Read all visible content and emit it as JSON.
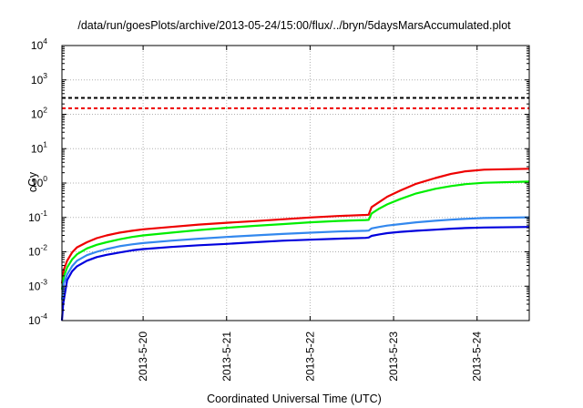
{
  "chart_data": {
    "type": "line",
    "title": "/data/run/goesPlots/archive/2013-05-24/15:00/flux/../bryn/5daysMarsAccumulated.plot",
    "xlabel": "Coordinated Universal Time (UTC)",
    "ylabel": "cGy",
    "yscale": "log",
    "ylim": [
      0.0001,
      10000
    ],
    "xlim": [
      "2013-05-19T00:40",
      "2013-05-24T15:00"
    ],
    "grid": true,
    "yticks": [
      {
        "base": "10",
        "exp": "-4",
        "value": 0.0001
      },
      {
        "base": "10",
        "exp": "-3",
        "value": 0.001
      },
      {
        "base": "10",
        "exp": "-2",
        "value": 0.01
      },
      {
        "base": "10",
        "exp": "-1",
        "value": 0.1
      },
      {
        "base": "10",
        "exp": "0",
        "value": 1
      },
      {
        "base": "10",
        "exp": "1",
        "value": 10
      },
      {
        "base": "10",
        "exp": "2",
        "value": 100
      },
      {
        "base": "10",
        "exp": "3",
        "value": 1000
      },
      {
        "base": "10",
        "exp": "4",
        "value": 10000
      }
    ],
    "xticks": [
      {
        "label": "2013-5-20",
        "value": "2013-05-20T00:00"
      },
      {
        "label": "2013-5-21",
        "value": "2013-05-21T00:00"
      },
      {
        "label": "2013-5-22",
        "value": "2013-05-22T00:00"
      },
      {
        "label": "2013-5-23",
        "value": "2013-05-23T00:00"
      },
      {
        "label": "2013-5-24",
        "value": "2013-05-24T00:00"
      }
    ],
    "reference_lines": [
      {
        "value": 300,
        "color": "#000000",
        "style": "dashed"
      },
      {
        "value": 150,
        "color": "#ee0000",
        "style": "dashed"
      }
    ],
    "series": [
      {
        "color": "#ee0000",
        "points": [
          [
            "2013-05-19T00:40",
            0.0012
          ],
          [
            "2013-05-19T01:12",
            0.003
          ],
          [
            "2013-05-19T02:10",
            0.0055
          ],
          [
            "2013-05-19T03:35",
            0.0095
          ],
          [
            "2013-05-19T05:00",
            0.0135
          ],
          [
            "2013-05-19T07:50",
            0.019
          ],
          [
            "2013-05-19T10:40",
            0.025
          ],
          [
            "2013-05-19T13:30",
            0.03
          ],
          [
            "2013-05-19T17:10",
            0.036
          ],
          [
            "2013-05-19T20:50",
            0.041
          ],
          [
            "2013-05-20T00:00",
            0.045
          ],
          [
            "2013-05-20T08:00",
            0.053
          ],
          [
            "2013-05-20T16:00",
            0.062
          ],
          [
            "2013-05-21T00:00",
            0.07
          ],
          [
            "2013-05-21T08:00",
            0.078
          ],
          [
            "2013-05-21T16:00",
            0.088
          ],
          [
            "2013-05-22T00:00",
            0.1
          ],
          [
            "2013-05-22T08:00",
            0.11
          ],
          [
            "2013-05-22T16:00",
            0.118
          ],
          [
            "2013-05-22T16:50",
            0.12
          ],
          [
            "2013-05-22T17:40",
            0.2
          ],
          [
            "2013-05-22T19:50",
            0.28
          ],
          [
            "2013-05-22T22:10",
            0.4
          ],
          [
            "2013-05-23T01:50",
            0.6
          ],
          [
            "2013-05-23T06:30",
            0.95
          ],
          [
            "2013-05-23T12:00",
            1.4
          ],
          [
            "2013-05-23T16:30",
            1.85
          ],
          [
            "2013-05-23T20:40",
            2.2
          ],
          [
            "2013-05-24T02:00",
            2.45
          ],
          [
            "2013-05-24T15:00",
            2.6
          ]
        ]
      },
      {
        "color": "#00ee00",
        "points": [
          [
            "2013-05-19T00:40",
            0.0008
          ],
          [
            "2013-05-19T01:12",
            0.0019
          ],
          [
            "2013-05-19T02:10",
            0.0035
          ],
          [
            "2013-05-19T03:35",
            0.006
          ],
          [
            "2013-05-19T05:00",
            0.0085
          ],
          [
            "2013-05-19T07:50",
            0.0125
          ],
          [
            "2013-05-19T10:40",
            0.016
          ],
          [
            "2013-05-19T13:30",
            0.019
          ],
          [
            "2013-05-19T17:10",
            0.023
          ],
          [
            "2013-05-19T20:50",
            0.027
          ],
          [
            "2013-05-20T00:00",
            0.03
          ],
          [
            "2013-05-20T08:00",
            0.036
          ],
          [
            "2013-05-20T16:00",
            0.043
          ],
          [
            "2013-05-21T00:00",
            0.05
          ],
          [
            "2013-05-21T08:00",
            0.057
          ],
          [
            "2013-05-21T16:00",
            0.064
          ],
          [
            "2013-05-22T00:00",
            0.072
          ],
          [
            "2013-05-22T08:00",
            0.079
          ],
          [
            "2013-05-22T16:00",
            0.084
          ],
          [
            "2013-05-22T16:50",
            0.085
          ],
          [
            "2013-05-22T17:40",
            0.13
          ],
          [
            "2013-05-22T19:50",
            0.18
          ],
          [
            "2013-05-22T22:10",
            0.24
          ],
          [
            "2013-05-23T01:50",
            0.34
          ],
          [
            "2013-05-23T06:30",
            0.5
          ],
          [
            "2013-05-23T12:00",
            0.68
          ],
          [
            "2013-05-23T16:30",
            0.82
          ],
          [
            "2013-05-23T20:40",
            0.93
          ],
          [
            "2013-05-24T02:00",
            1.02
          ],
          [
            "2013-05-24T15:00",
            1.1
          ]
        ]
      },
      {
        "color": "#3388ee",
        "points": [
          [
            "2013-05-19T00:40",
            0.0004
          ],
          [
            "2013-05-19T01:12",
            0.0012
          ],
          [
            "2013-05-19T02:10",
            0.0022
          ],
          [
            "2013-05-19T03:35",
            0.0038
          ],
          [
            "2013-05-19T05:00",
            0.0055
          ],
          [
            "2013-05-19T07:50",
            0.008
          ],
          [
            "2013-05-19T10:40",
            0.01
          ],
          [
            "2013-05-19T13:30",
            0.012
          ],
          [
            "2013-05-19T17:10",
            0.0145
          ],
          [
            "2013-05-19T20:50",
            0.0165
          ],
          [
            "2013-05-20T00:00",
            0.018
          ],
          [
            "2013-05-20T08:00",
            0.021
          ],
          [
            "2013-05-20T16:00",
            0.024
          ],
          [
            "2013-05-21T00:00",
            0.027
          ],
          [
            "2013-05-21T08:00",
            0.03
          ],
          [
            "2013-05-21T16:00",
            0.033
          ],
          [
            "2013-05-22T00:00",
            0.036
          ],
          [
            "2013-05-22T08:00",
            0.039
          ],
          [
            "2013-05-22T16:00",
            0.041
          ],
          [
            "2013-05-22T16:50",
            0.0415
          ],
          [
            "2013-05-22T17:40",
            0.048
          ],
          [
            "2013-05-22T19:50",
            0.053
          ],
          [
            "2013-05-22T22:10",
            0.058
          ],
          [
            "2013-05-23T01:50",
            0.064
          ],
          [
            "2013-05-23T06:30",
            0.072
          ],
          [
            "2013-05-23T12:00",
            0.08
          ],
          [
            "2013-05-23T16:30",
            0.086
          ],
          [
            "2013-05-23T20:40",
            0.091
          ],
          [
            "2013-05-24T02:00",
            0.096
          ],
          [
            "2013-05-24T15:00",
            0.101
          ]
        ]
      },
      {
        "color": "#0000dd",
        "points": [
          [
            "2013-05-19T00:40",
            0.0001
          ],
          [
            "2013-05-19T01:00",
            0.0003
          ],
          [
            "2013-05-19T02:10",
            0.0015
          ],
          [
            "2013-05-19T03:35",
            0.0027
          ],
          [
            "2013-05-19T05:00",
            0.0038
          ],
          [
            "2013-05-19T07:50",
            0.0055
          ],
          [
            "2013-05-19T10:40",
            0.007
          ],
          [
            "2013-05-19T13:30",
            0.0082
          ],
          [
            "2013-05-19T17:10",
            0.0095
          ],
          [
            "2013-05-19T20:50",
            0.011
          ],
          [
            "2013-05-20T00:00",
            0.012
          ],
          [
            "2013-05-20T08:00",
            0.0138
          ],
          [
            "2013-05-20T16:00",
            0.0155
          ],
          [
            "2013-05-21T00:00",
            0.017
          ],
          [
            "2013-05-21T08:00",
            0.019
          ],
          [
            "2013-05-21T16:00",
            0.021
          ],
          [
            "2013-05-22T00:00",
            0.0225
          ],
          [
            "2013-05-22T08:00",
            0.024
          ],
          [
            "2013-05-22T16:00",
            0.0255
          ],
          [
            "2013-05-22T16:50",
            0.026
          ],
          [
            "2013-05-22T17:40",
            0.029
          ],
          [
            "2013-05-22T19:50",
            0.032
          ],
          [
            "2013-05-22T22:10",
            0.035
          ],
          [
            "2013-05-23T01:50",
            0.038
          ],
          [
            "2013-05-23T06:30",
            0.041
          ],
          [
            "2013-05-23T12:00",
            0.044
          ],
          [
            "2013-05-23T16:30",
            0.047
          ],
          [
            "2013-05-23T20:40",
            0.049
          ],
          [
            "2013-05-24T02:00",
            0.051
          ],
          [
            "2013-05-24T15:00",
            0.053
          ]
        ]
      }
    ]
  }
}
